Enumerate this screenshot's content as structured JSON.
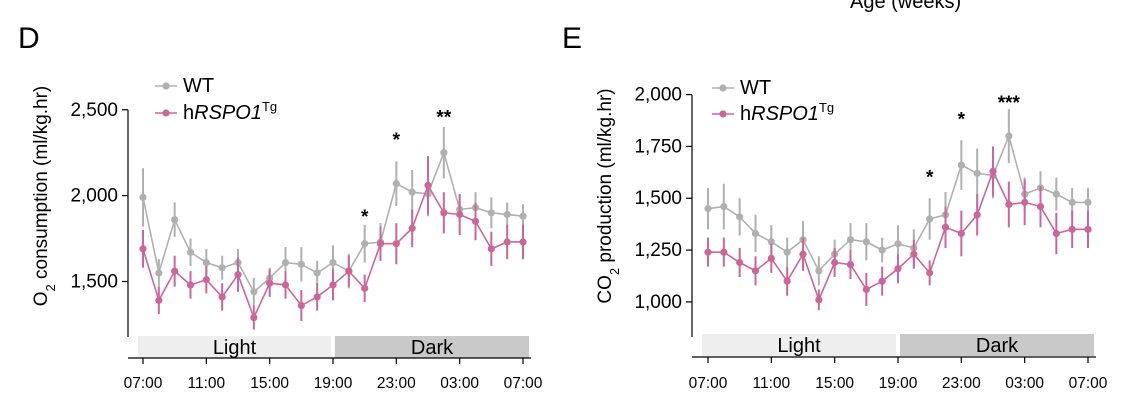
{
  "header_fragment": "Age (weeks)",
  "colors": {
    "wt": "#b0b0b0",
    "tg": "#cc6699",
    "light_bar": "#eeeeee",
    "dark_bar": "#c9c9c9"
  },
  "chart_data": [
    {
      "panel": "D",
      "type": "line",
      "ylabel_main": "O",
      "ylabel_sub": "2",
      "ylabel_rest": " consumption (ml/kg.hr)",
      "ylim": [
        1200,
        2650
      ],
      "yticks": [
        1500,
        2000,
        2500
      ],
      "ytick_labels": [
        "1,500",
        "2,000",
        "2,500"
      ],
      "xticks": [
        0,
        4,
        8,
        12,
        16,
        20,
        24
      ],
      "xtick_labels": [
        "07:00",
        "11:00",
        "15:00",
        "19:00",
        "23:00",
        "03:00",
        "07:00"
      ],
      "phases": [
        {
          "label": "Light",
          "start": 0,
          "end": 12
        },
        {
          "label": "Dark",
          "start": 12,
          "end": 24
        }
      ],
      "legend": [
        {
          "key": "wt",
          "text": "WT"
        },
        {
          "key": "tg",
          "prefix": "h",
          "italic": "RSPO1",
          "sup": "Tg"
        }
      ],
      "series": [
        {
          "key": "wt",
          "x": [
            0,
            1,
            2,
            3,
            4,
            5,
            6,
            7,
            8,
            9,
            10,
            11,
            12,
            13,
            14,
            15,
            16,
            17,
            18,
            19,
            20,
            21,
            22,
            23,
            24
          ],
          "values": [
            1990,
            1550,
            1860,
            1670,
            1610,
            1580,
            1610,
            1440,
            1520,
            1610,
            1600,
            1550,
            1610,
            1560,
            1720,
            1730,
            2070,
            2020,
            2010,
            2250,
            1920,
            1930,
            1900,
            1890,
            1880
          ],
          "err": [
            170,
            80,
            100,
            80,
            80,
            70,
            80,
            80,
            60,
            90,
            100,
            70,
            100,
            100,
            110,
            110,
            130,
            130,
            130,
            150,
            80,
            90,
            90,
            70,
            70
          ]
        },
        {
          "key": "tg",
          "x": [
            0,
            1,
            2,
            3,
            4,
            5,
            6,
            7,
            8,
            9,
            10,
            11,
            12,
            13,
            14,
            15,
            16,
            17,
            18,
            19,
            20,
            21,
            22,
            23,
            24
          ],
          "values": [
            1690,
            1390,
            1560,
            1480,
            1510,
            1410,
            1540,
            1290,
            1490,
            1480,
            1360,
            1410,
            1480,
            1560,
            1460,
            1720,
            1720,
            1810,
            2060,
            1900,
            1890,
            1850,
            1690,
            1730,
            1730
          ],
          "err": [
            110,
            80,
            90,
            80,
            80,
            80,
            100,
            70,
            80,
            80,
            90,
            80,
            90,
            90,
            80,
            100,
            120,
            110,
            170,
            120,
            120,
            110,
            100,
            100,
            100
          ]
        }
      ],
      "annotations": [
        {
          "x": 14,
          "y": 1840,
          "text": "*"
        },
        {
          "x": 16,
          "y": 2290,
          "text": "*"
        },
        {
          "x": 19,
          "y": 2420,
          "text": "**"
        }
      ]
    },
    {
      "panel": "E",
      "type": "line",
      "ylabel_main": "CO",
      "ylabel_sub": "2",
      "ylabel_rest": " production (ml/kg.hr)",
      "ylim": [
        850,
        2080
      ],
      "yticks": [
        1000,
        1250,
        1500,
        1750,
        2000
      ],
      "ytick_labels": [
        "1,000",
        "1,250",
        "1,500",
        "1,750",
        "2,000"
      ],
      "xticks": [
        0,
        4,
        8,
        12,
        16,
        20,
        24
      ],
      "xtick_labels": [
        "07:00",
        "11:00",
        "15:00",
        "19:00",
        "23:00",
        "03:00",
        "07:00"
      ],
      "phases": [
        {
          "label": "Light",
          "start": 0,
          "end": 12
        },
        {
          "label": "Dark",
          "start": 12,
          "end": 24
        }
      ],
      "legend": [
        {
          "key": "wt",
          "text": "WT"
        },
        {
          "key": "tg",
          "prefix": "h",
          "italic": "RSPO1",
          "sup": "Tg"
        }
      ],
      "series": [
        {
          "key": "wt",
          "x": [
            0,
            1,
            2,
            3,
            4,
            5,
            6,
            7,
            8,
            9,
            10,
            11,
            12,
            13,
            14,
            15,
            16,
            17,
            18,
            19,
            20,
            21,
            22,
            23,
            24
          ],
          "values": [
            1450,
            1460,
            1410,
            1330,
            1290,
            1240,
            1300,
            1150,
            1230,
            1300,
            1290,
            1250,
            1280,
            1260,
            1400,
            1420,
            1660,
            1620,
            1610,
            1800,
            1520,
            1550,
            1520,
            1480,
            1480
          ],
          "err": [
            100,
            110,
            90,
            90,
            80,
            70,
            90,
            70,
            70,
            80,
            90,
            60,
            90,
            90,
            100,
            110,
            120,
            120,
            110,
            130,
            80,
            80,
            80,
            70,
            70
          ]
        },
        {
          "key": "tg",
          "x": [
            0,
            1,
            2,
            3,
            4,
            5,
            6,
            7,
            8,
            9,
            10,
            11,
            12,
            13,
            14,
            15,
            16,
            17,
            18,
            19,
            20,
            21,
            22,
            23,
            24
          ],
          "values": [
            1240,
            1240,
            1190,
            1150,
            1210,
            1100,
            1230,
            1010,
            1190,
            1180,
            1060,
            1100,
            1160,
            1230,
            1140,
            1360,
            1330,
            1420,
            1630,
            1470,
            1480,
            1460,
            1330,
            1350,
            1350
          ],
          "err": [
            70,
            70,
            70,
            70,
            70,
            70,
            80,
            50,
            70,
            70,
            80,
            70,
            70,
            70,
            60,
            100,
            110,
            100,
            120,
            110,
            110,
            100,
            100,
            90,
            90
          ]
        }
      ],
      "annotations": [
        {
          "x": 14,
          "y": 1570,
          "text": "*"
        },
        {
          "x": 16,
          "y": 1850,
          "text": "*"
        },
        {
          "x": 19,
          "y": 1930,
          "text": "***"
        }
      ]
    }
  ]
}
